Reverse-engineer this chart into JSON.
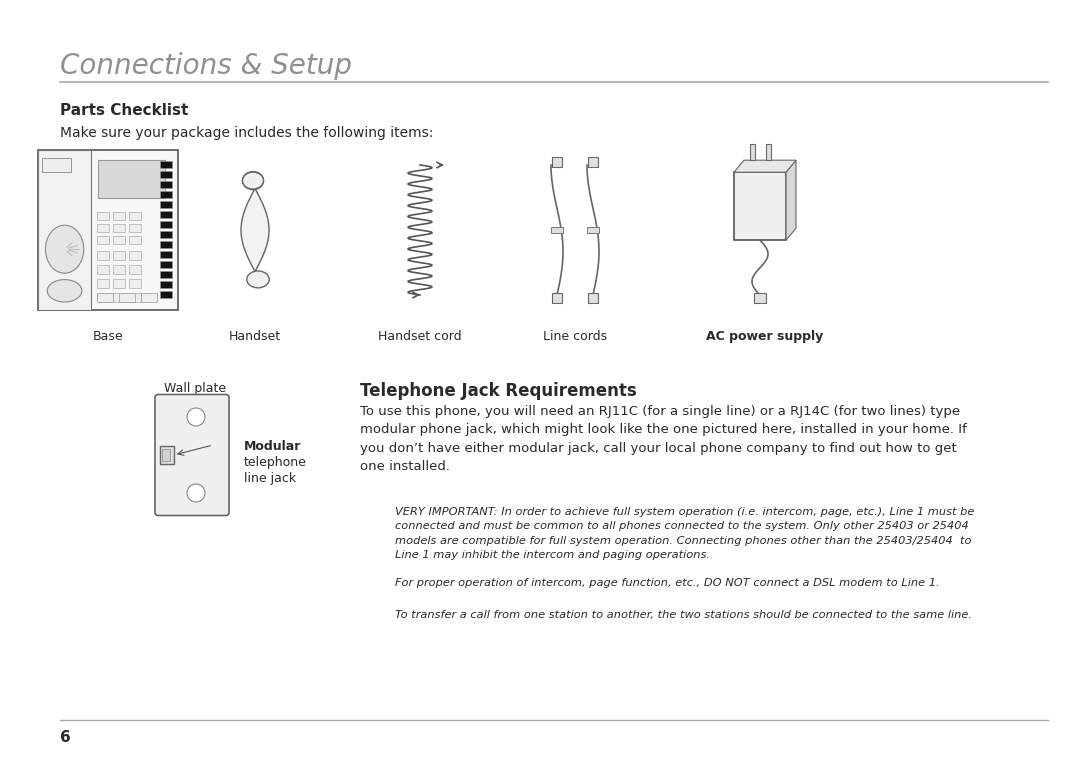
{
  "bg_color": "#ffffff",
  "text_color": "#2a2a2a",
  "gray_color": "#888888",
  "light_gray": "#cccccc",
  "title": "Connections & Setup",
  "title_color": "#909090",
  "title_fontsize": 20,
  "parts_heading": "Parts Checklist",
  "parts_heading_fontsize": 11,
  "parts_intro": "Make sure your package includes the following items:",
  "parts_intro_fontsize": 10.5,
  "item_labels": [
    "Base",
    "Handset",
    "Handset cord",
    "Line cords",
    "AC power supply"
  ],
  "item_label_bold": [
    false,
    false,
    false,
    false,
    true
  ],
  "wall_plate_label": "Wall plate",
  "modular_label_lines": [
    "Modular",
    "telephone",
    "line jack"
  ],
  "tel_jack_heading": "Telephone Jack Requirements",
  "tel_jack_heading_fontsize": 12,
  "tel_jack_para": "To use this phone, you will need an RJ11C (for a single line) or a RJ14C (for two lines) type\nmodular phone jack, which might look like the one pictured here, installed in your home. If\nyou don’t have either modular jack, call your local phone company to find out how to get\none installed.",
  "important_text": "VERY IMPORTANT: In order to achieve full system operation (i.e. intercom, page, etc.), Line 1 must be\nconnected and must be common to all phones connected to the system. Only other 25403 or 25404\nmodels are compatible for full system operation. Connecting phones other than the 25403/25404  to\nLine 1 may inhibit the intercom and paging operations.",
  "note1_text": "For proper operation of intercom, page function, etc., DO NOT connect a DSL modem to Line 1.",
  "note2_text": "To transfer a call from one station to another, the two stations should be connected to the same line.",
  "page_num": "6"
}
